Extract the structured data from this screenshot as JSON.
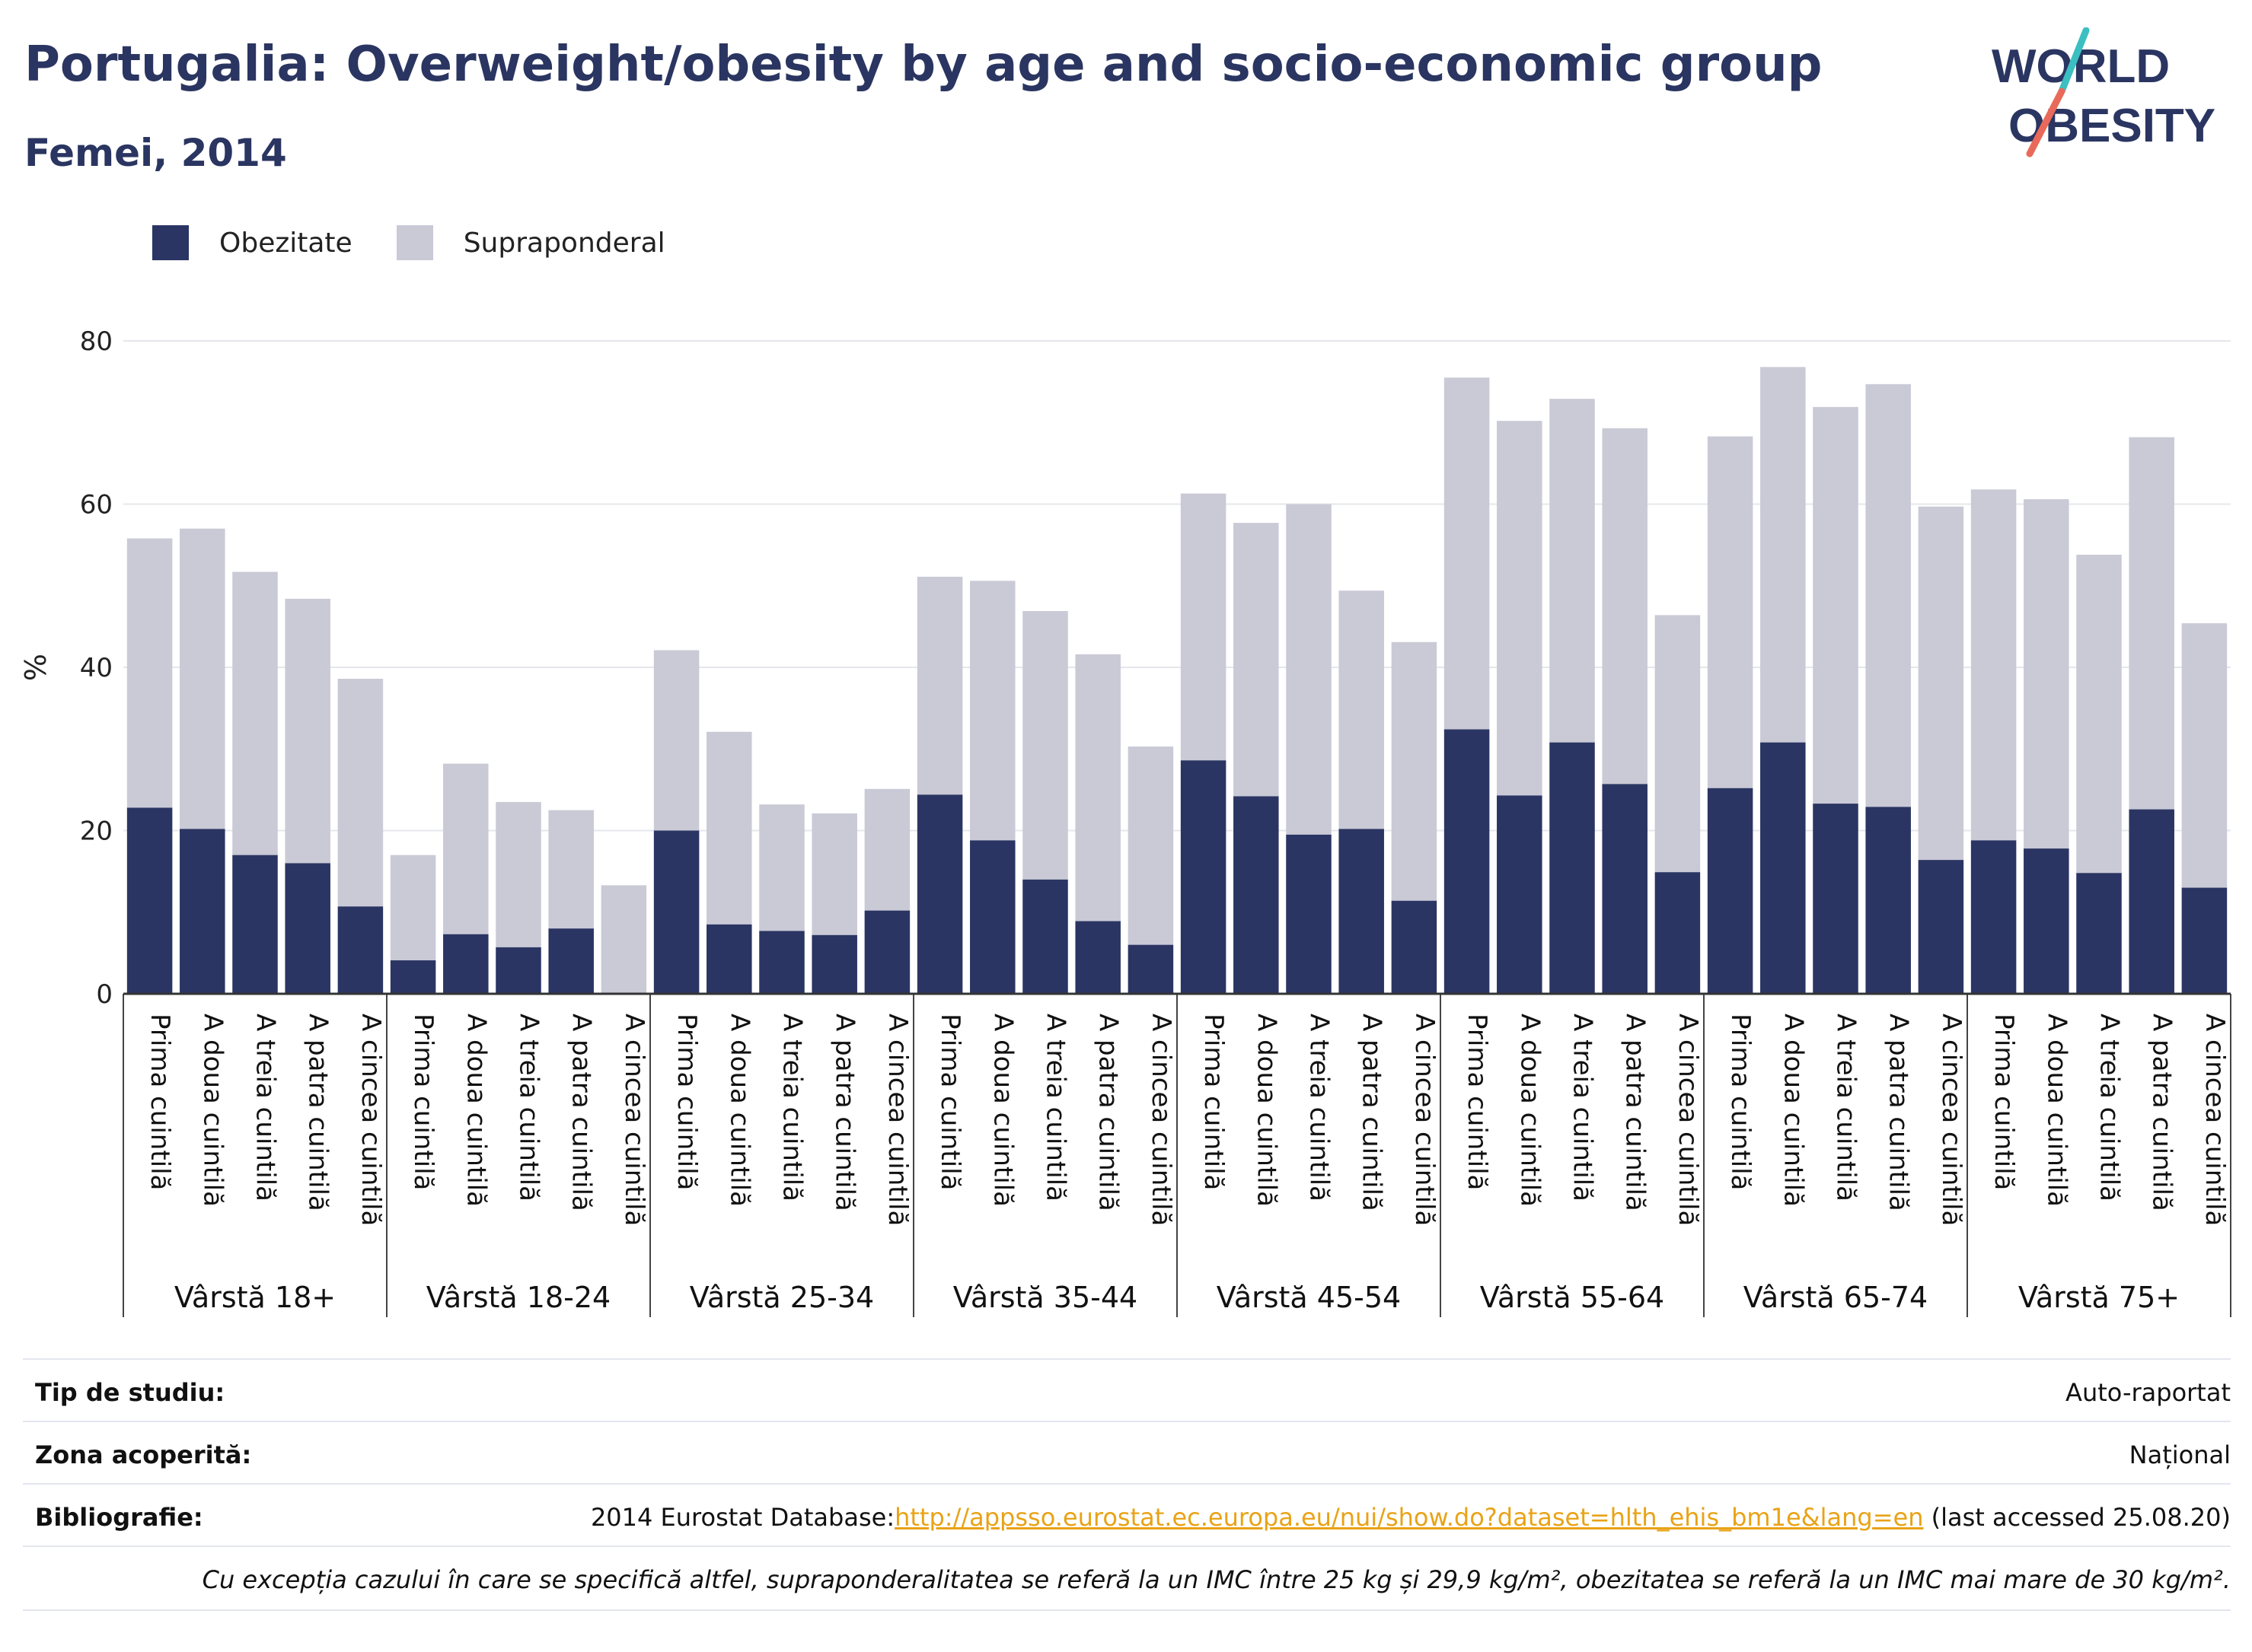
{
  "title": "Portugalia: Overweight/obesity by age and socio-economic group",
  "subtitle": "Femei, 2014",
  "logo": {
    "line1": "WORLD",
    "line2": "OBESITY"
  },
  "colors": {
    "obesity": "#2b3563",
    "overweight": "#c9cad6",
    "text": "#2a3561",
    "accent_teal": "#3bbfc1",
    "accent_red": "#e96a5a",
    "link": "#e8a317"
  },
  "legend": [
    {
      "label": "Obezitate",
      "color": "#2b3563"
    },
    {
      "label": "Supraponderal",
      "color": "#c9cad6"
    }
  ],
  "chart_data": {
    "type": "bar",
    "stacked": true,
    "ylabel": "%",
    "ylim": [
      0,
      80
    ],
    "yticks": [
      0,
      20,
      40,
      60,
      80
    ],
    "grid": true,
    "quintiles": [
      "Prima cuintilă",
      "A doua cuintilă",
      "A treia cuintilă",
      "A patra cuintilă",
      "A cincea cuintilă"
    ],
    "groups": [
      "Vârstă 18+",
      "Vârstă 18-24",
      "Vârstă 25-34",
      "Vârstă 35-44",
      "Vârstă 45-54",
      "Vârstă 55-64",
      "Vârstă 65-74",
      "Vârstă 75+"
    ],
    "series": [
      {
        "name": "Obezitate",
        "values": [
          [
            22.8,
            20.2,
            17.0,
            16.0,
            10.7
          ],
          [
            4.1,
            7.3,
            5.7,
            8.0,
            0.0
          ],
          [
            20.0,
            8.5,
            7.7,
            7.2,
            10.2
          ],
          [
            24.4,
            18.8,
            14.0,
            8.9,
            6.0
          ],
          [
            28.6,
            24.2,
            19.5,
            20.2,
            11.4
          ],
          [
            32.4,
            24.3,
            30.8,
            25.7,
            14.9
          ],
          [
            25.2,
            30.8,
            23.3,
            22.9,
            16.4
          ],
          [
            18.8,
            17.8,
            14.8,
            22.6,
            13.0
          ]
        ]
      },
      {
        "name": "Supraponderal",
        "values": [
          [
            33.0,
            36.8,
            34.7,
            32.4,
            27.9
          ],
          [
            12.9,
            20.9,
            17.8,
            14.5,
            13.3
          ],
          [
            22.1,
            23.6,
            15.5,
            14.9,
            14.9
          ],
          [
            26.7,
            31.8,
            32.9,
            32.7,
            24.3
          ],
          [
            32.7,
            33.5,
            40.5,
            29.2,
            31.7
          ],
          [
            43.1,
            45.9,
            42.1,
            43.6,
            31.5
          ],
          [
            43.1,
            46.0,
            48.6,
            51.8,
            43.3
          ],
          [
            43.0,
            42.8,
            39.0,
            45.6,
            32.4
          ]
        ]
      }
    ]
  },
  "info": {
    "survey_type": {
      "label": "Tip de studiu:",
      "value": "Auto-raportat"
    },
    "coverage": {
      "label": "Zona acoperită:",
      "value": "Național"
    },
    "references": {
      "label": "Bibliografie:",
      "prefix": "2014 Eurostat Database:",
      "link": "http://appsso.eurostat.ec.europa.eu/nui/show.do?dataset=hlth_ehis_bm1e&lang=en",
      "suffix": " (last accessed 25.08.20)"
    },
    "note": "Cu excepția cazului în care se specifică altfel, supraponderalitatea se referă la un IMC între 25 kg și 29,9 kg/m², obezitatea se referă la un IMC mai mare de 30 kg/m²."
  }
}
